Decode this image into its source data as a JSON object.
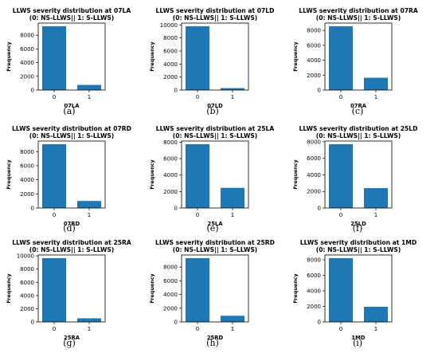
{
  "chart_data": [
    {
      "type": "bar",
      "title": "LLWS severity distribution at 07LA",
      "subtitle": "(0: NS-LLWS|| 1: S-LLWS)",
      "xlabel": "07LA",
      "ylabel": "Frequency",
      "categories": [
        "0",
        "1"
      ],
      "values": [
        9300,
        750
      ],
      "ylim": [
        0,
        9765
      ],
      "yticks": [
        0,
        2000,
        4000,
        6000,
        8000
      ],
      "caption": "(a)",
      "color": "#1f77b4"
    },
    {
      "type": "bar",
      "title": "LLWS severity distribution at 07LD",
      "subtitle": "(0: NS-LLWS|| 1: S-LLWS)",
      "xlabel": "07LD",
      "ylabel": "Frequency",
      "categories": [
        "0",
        "1"
      ],
      "values": [
        9800,
        300
      ],
      "ylim": [
        0,
        10290
      ],
      "yticks": [
        0,
        2000,
        4000,
        6000,
        8000,
        10000
      ],
      "caption": "(b)",
      "color": "#1f77b4"
    },
    {
      "type": "bar",
      "title": "LLWS severity distribution at 07RA",
      "subtitle": "(0: NS-LLWS|| 1: S-LLWS)",
      "xlabel": "07RA",
      "ylabel": "Frequency",
      "categories": [
        "0",
        "1"
      ],
      "values": [
        8550,
        1650
      ],
      "ylim": [
        0,
        8978
      ],
      "yticks": [
        0,
        2000,
        4000,
        6000,
        8000
      ],
      "caption": "(c)",
      "color": "#1f77b4"
    },
    {
      "type": "bar",
      "title": "LLWS severity distribution at 07RD",
      "subtitle": "(0: NS-LLWS|| 1: S-LLWS)",
      "xlabel": "07RD",
      "ylabel": "Frequency",
      "categories": [
        "0",
        "1"
      ],
      "values": [
        9050,
        1000
      ],
      "ylim": [
        0,
        9503
      ],
      "yticks": [
        0,
        2000,
        4000,
        6000,
        8000
      ],
      "caption": "(d)",
      "color": "#1f77b4"
    },
    {
      "type": "bar",
      "title": "LLWS severity distribution at 25LA",
      "subtitle": "(0: NS-LLWS|| 1: S-LLWS)",
      "xlabel": "25LA",
      "ylabel": "Frequency",
      "categories": [
        "0",
        "1"
      ],
      "values": [
        7750,
        2450
      ],
      "ylim": [
        0,
        8138
      ],
      "yticks": [
        0,
        2000,
        4000,
        6000,
        8000
      ],
      "caption": "(e)",
      "color": "#1f77b4"
    },
    {
      "type": "bar",
      "title": "LLWS severity distribution at 25LD",
      "subtitle": "(0: NS-LLWS|| 1: S-LLWS)",
      "xlabel": "25LD",
      "ylabel": "Frequency",
      "categories": [
        "0",
        "1"
      ],
      "values": [
        7700,
        2400
      ],
      "ylim": [
        0,
        8085
      ],
      "yticks": [
        0,
        2000,
        4000,
        6000,
        8000
      ],
      "caption": "(f)",
      "color": "#1f77b4"
    },
    {
      "type": "bar",
      "title": "LLWS severity distribution at 25RA",
      "subtitle": "(0: NS-LLWS|| 1: S-LLWS)",
      "xlabel": "25RA",
      "ylabel": "Frequency",
      "categories": [
        "0",
        "1"
      ],
      "values": [
        9650,
        550
      ],
      "ylim": [
        0,
        10133
      ],
      "yticks": [
        0,
        2000,
        4000,
        6000,
        8000,
        10000
      ],
      "caption": "(g)",
      "color": "#1f77b4"
    },
    {
      "type": "bar",
      "title": "LLWS severity distribution at 25RD",
      "subtitle": "(0: NS-LLWS|| 1: S-LLWS)",
      "xlabel": "25RD",
      "ylabel": "Frequency",
      "categories": [
        "0",
        "1"
      ],
      "values": [
        9300,
        900
      ],
      "ylim": [
        0,
        9765
      ],
      "yticks": [
        0,
        2000,
        4000,
        6000,
        8000
      ],
      "caption": "(h)",
      "color": "#1f77b4"
    },
    {
      "type": "bar",
      "title": "LLWS severity distribution at 1MD",
      "subtitle": "(0: NS-LLWS|| 1: S-LLWS)",
      "xlabel": "1MD",
      "ylabel": "Frequency",
      "categories": [
        "0",
        "1"
      ],
      "values": [
        8200,
        1950
      ],
      "ylim": [
        0,
        8610
      ],
      "yticks": [
        0,
        2000,
        4000,
        6000,
        8000
      ],
      "caption": "(i)",
      "color": "#1f77b4"
    }
  ]
}
